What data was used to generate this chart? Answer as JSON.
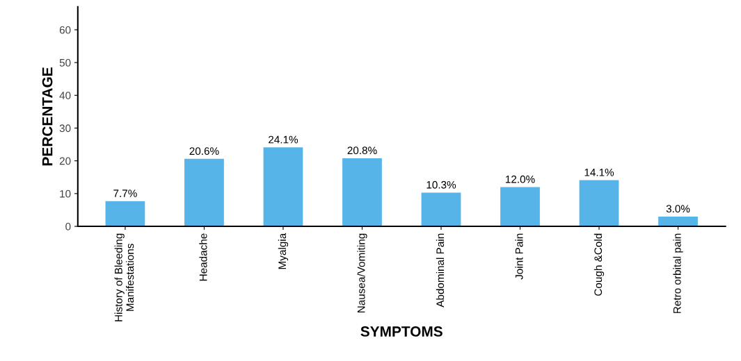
{
  "chart_data": {
    "type": "bar",
    "xlabel": "SYMPTOMS",
    "ylabel": "PERCENTAGE",
    "categories": [
      "History of Bleeding\nManifestations",
      "Headache",
      "Myalgia",
      "Nausea/Vomiting",
      "Abdominal Pain",
      "Joint Pain",
      "Cough &Cold",
      "Retro orbital pain"
    ],
    "values": [
      7.7,
      20.6,
      24.1,
      20.8,
      10.3,
      12.0,
      14.1,
      3.0
    ],
    "value_labels": [
      "7.7%",
      "20.6%",
      "24.1%",
      "20.8%",
      "10.3%",
      "12.0%",
      "14.1%",
      "3.0%"
    ],
    "color": "#56b4e9",
    "ylim": [
      0,
      67
    ],
    "yticks": [
      0,
      10,
      20,
      30,
      40,
      50,
      60
    ],
    "grid": false
  }
}
